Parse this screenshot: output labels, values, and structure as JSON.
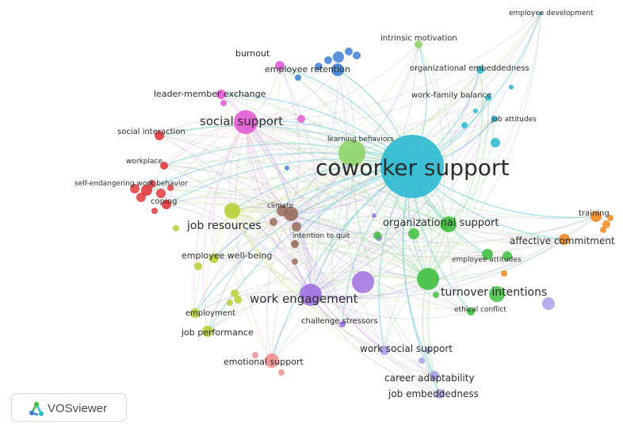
{
  "app": {
    "name": "VOSviewer"
  },
  "clusters": {
    "red": "#e2393d",
    "pink": "#e25bd2",
    "blue": "#3a7fd5",
    "cyan": "#2bb9d0",
    "green": "#3fbf3f",
    "light_green": "#8fd46a",
    "orange": "#f28a1e",
    "brown": "#9a6b5a",
    "yellow_green": "#b7cf35",
    "purple": "#a070e0",
    "light_purple": "#a9a0e6",
    "salmon": "#f08f8f"
  },
  "terms": [
    {
      "id": "coworker-support",
      "label": "coworker support",
      "cluster": "cyan"
    },
    {
      "id": "social-support",
      "label": "social support",
      "cluster": "pink"
    },
    {
      "id": "work-engagement",
      "label": "work engagement",
      "cluster": "purple"
    },
    {
      "id": "turnover-intentions",
      "label": "turnover intentions",
      "cluster": "green"
    },
    {
      "id": "organizational-support",
      "label": "organizational support",
      "cluster": "green"
    },
    {
      "id": "job-resources",
      "label": "job resources",
      "cluster": "yellow_green"
    },
    {
      "id": "affective-commitment",
      "label": "affective commitment",
      "cluster": "orange"
    },
    {
      "id": "training",
      "label": "training",
      "cluster": "orange"
    },
    {
      "id": "employee-development",
      "label": "employee development",
      "cluster": "cyan"
    },
    {
      "id": "intrinsic-motivation",
      "label": "intrinsic motivation",
      "cluster": "light_green"
    },
    {
      "id": "organizational-embeddedness",
      "label": "organizational embeddedness",
      "cluster": "cyan"
    },
    {
      "id": "work-family-balance",
      "label": "work-family balance",
      "cluster": "cyan"
    },
    {
      "id": "job-attitudes",
      "label": "job attitudes",
      "cluster": "cyan"
    },
    {
      "id": "burnout",
      "label": "burnout",
      "cluster": "pink"
    },
    {
      "id": "employee-retention",
      "label": "employee retention",
      "cluster": "blue"
    },
    {
      "id": "leader-member-exchange",
      "label": "leader-member exchange",
      "cluster": "pink"
    },
    {
      "id": "learning-behaviors",
      "label": "learning behaviors",
      "cluster": "light_green"
    },
    {
      "id": "social-interaction",
      "label": "social interaction",
      "cluster": "red"
    },
    {
      "id": "workplace",
      "label": "workplace",
      "cluster": "red"
    },
    {
      "id": "self-endangering-work-behavior",
      "label": "self-endangering work behavior",
      "cluster": "red"
    },
    {
      "id": "coping",
      "label": "coping",
      "cluster": "red"
    },
    {
      "id": "climate",
      "label": "climate",
      "cluster": "brown"
    },
    {
      "id": "intention-to-quit",
      "label": "intention to quit",
      "cluster": "brown"
    },
    {
      "id": "employee-well-being",
      "label": "employee well-being",
      "cluster": "yellow_green"
    },
    {
      "id": "employee-attitudes",
      "label": "employee attitudes",
      "cluster": "green"
    },
    {
      "id": "ethical-conflict",
      "label": "ethical conflict",
      "cluster": "green"
    },
    {
      "id": "employment",
      "label": "employment",
      "cluster": "yellow_green"
    },
    {
      "id": "job-performance",
      "label": "job performance",
      "cluster": "yellow_green"
    },
    {
      "id": "challenge-stressors",
      "label": "challenge stressors",
      "cluster": "purple"
    },
    {
      "id": "work-social-support",
      "label": "work social support",
      "cluster": "light_purple"
    },
    {
      "id": "emotional-support",
      "label": "emotional support",
      "cluster": "salmon"
    },
    {
      "id": "career-adaptability",
      "label": "career adaptability",
      "cluster": "light_purple"
    },
    {
      "id": "job-embeddedness",
      "label": "job embeddedness",
      "cluster": "light_purple"
    }
  ],
  "edge_colors": {
    "cyan": "#8fd8e8",
    "pink": "#f0a6e3",
    "red": "#f08a8c",
    "orange": "#f6c07e",
    "green": "#9fdc9f",
    "purple": "#c2a7ee",
    "yellow": "#d9e28c",
    "blue": "#9dc0ec"
  }
}
